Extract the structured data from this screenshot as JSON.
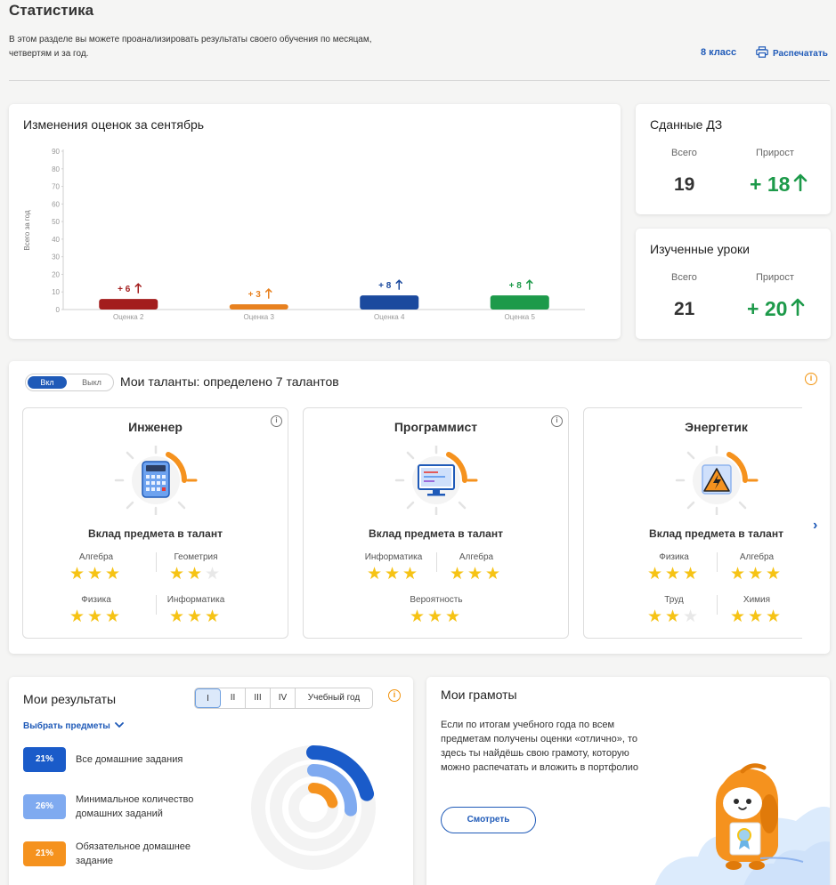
{
  "header": {
    "title": "Статистика",
    "description": "В этом разделе вы можете проанализировать результаты своего обучения по месяцам, четвертям и за год.",
    "grade": "8 класс",
    "print": "Распечатать"
  },
  "grades_chart": {
    "title": "Изменения оценок за сентябрь",
    "chart_data": {
      "type": "bar",
      "title": "Изменения оценок за сентябрь",
      "ylabel": "Всего за год",
      "xlabel": "",
      "ylim": [
        0,
        90
      ],
      "yticks": [
        0,
        10,
        20,
        30,
        40,
        50,
        60,
        70,
        80,
        90
      ],
      "categories": [
        "Оценка 2",
        "Оценка 3",
        "Оценка 4",
        "Оценка 5"
      ],
      "values": [
        6,
        3,
        8,
        8
      ],
      "labels": [
        "+ 6",
        "+ 3",
        "+ 8",
        "+ 8"
      ],
      "colors": [
        "#a31d1d",
        "#e8811f",
        "#1b4a9e",
        "#1d9a4a"
      ],
      "grid": false,
      "legend": "none"
    }
  },
  "homework": {
    "title": "Сданные ДЗ",
    "total_label": "Всего",
    "total": "19",
    "growth_label": "Прирост",
    "growth": "+ 18"
  },
  "lessons": {
    "title": "Изученные уроки",
    "total_label": "Всего",
    "total": "21",
    "growth_label": "Прирост",
    "growth": "+ 20"
  },
  "talents": {
    "toggle_on": "Вкл",
    "toggle_off": "Выкл",
    "title": "Мои таланты: определено 7 талантов",
    "contribution_label": "Вклад предмета в талант",
    "cards": [
      {
        "name": "Инженер",
        "icon": "calculator-icon",
        "subjects": [
          {
            "name": "Алгебра",
            "stars": 3
          },
          {
            "name": "Геометрия",
            "stars": 2
          },
          {
            "name": "Физика",
            "stars": 3
          },
          {
            "name": "Информатика",
            "stars": 3
          }
        ]
      },
      {
        "name": "Программист",
        "icon": "monitor-icon",
        "subjects": [
          {
            "name": "Информатика",
            "stars": 3
          },
          {
            "name": "Алгебра",
            "stars": 3
          },
          {
            "name": "Вероятность",
            "stars": 3
          }
        ]
      },
      {
        "name": "Энергетик",
        "icon": "high-voltage-icon",
        "subjects": [
          {
            "name": "Физика",
            "stars": 3
          },
          {
            "name": "Алгебра",
            "stars": 3
          },
          {
            "name": "Труд",
            "stars": 2
          },
          {
            "name": "Химия",
            "stars": 3
          }
        ]
      }
    ]
  },
  "results": {
    "title": "Мои результаты",
    "periods": [
      "I",
      "II",
      "III",
      "IV",
      "Учебный год"
    ],
    "active_period": "I",
    "select_subjects": "Выбрать предметы",
    "legend": [
      {
        "value": "21%",
        "label": "Все домашние задания",
        "color": "#1a5bc9",
        "fraction": 0.21
      },
      {
        "value": "26%",
        "label": "Минимальное количество домашних заданий",
        "color": "#7faaf0",
        "fraction": 0.26
      },
      {
        "value": "21%",
        "label": "Обязательное домашнее задание",
        "color": "#f5921e",
        "fraction": 0.21
      }
    ]
  },
  "awards": {
    "title": "Мои грамоты",
    "text": "Если по итогам учебного года по всем предметам получены оценки «отлично», то здесь ты найдёшь свою грамоту, которую можно распечатать и вложить в портфолио",
    "button": "Смотреть"
  }
}
